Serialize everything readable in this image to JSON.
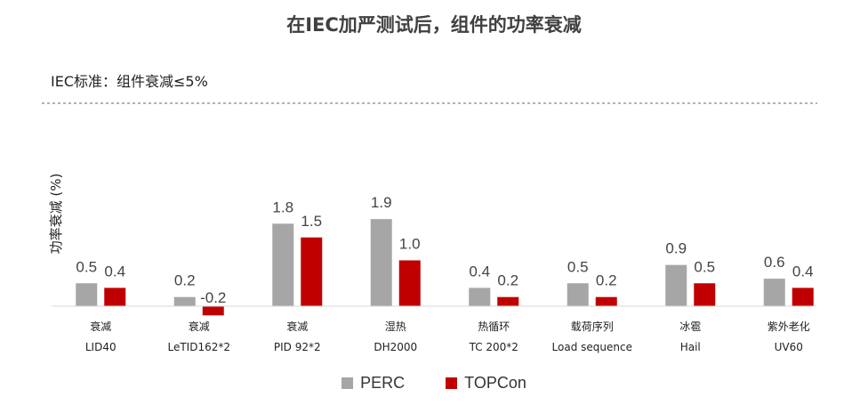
{
  "chart_data": {
    "type": "bar",
    "title": "在IEC加严测试后，组件的功率衰减",
    "subtitle": "IEC标准：组件衰减≤5%",
    "ylabel": "功率衰减 (%)",
    "xlabel": "",
    "categories": [
      {
        "line1": "衰减",
        "line2": "LID40"
      },
      {
        "line1": "衰减",
        "line2": "LeTID162*2"
      },
      {
        "line1": "衰减",
        "line2": "PID 92*2"
      },
      {
        "line1": "湿热",
        "line2": "DH2000"
      },
      {
        "line1": "热循环",
        "line2": "TC 200*2"
      },
      {
        "line1": "载荷序列",
        "line2": "Load sequence"
      },
      {
        "line1": "冰雹",
        "line2": "Hail"
      },
      {
        "line1": "紫外老化",
        "line2": "UV60"
      }
    ],
    "series": [
      {
        "name": "PERC",
        "color": "#a6a6a6",
        "values": [
          0.5,
          0.2,
          1.8,
          1.9,
          0.4,
          0.5,
          0.9,
          0.6
        ],
        "labels": [
          "0.5",
          "0.2",
          "1.8",
          "1.9",
          "0.4",
          "0.5",
          "0.9",
          "0.6"
        ]
      },
      {
        "name": "TOPCon",
        "color": "#c00000",
        "values": [
          0.4,
          -0.2,
          1.5,
          1.0,
          0.2,
          0.2,
          0.5,
          0.4
        ],
        "labels": [
          "0.4",
          "-0.2",
          "1.5",
          "1.0",
          "0.2",
          "0.2",
          "0.5",
          "0.4"
        ]
      }
    ],
    "ylim": [
      -0.2,
      2.0
    ],
    "grid": false,
    "legend": "bottom-center"
  }
}
